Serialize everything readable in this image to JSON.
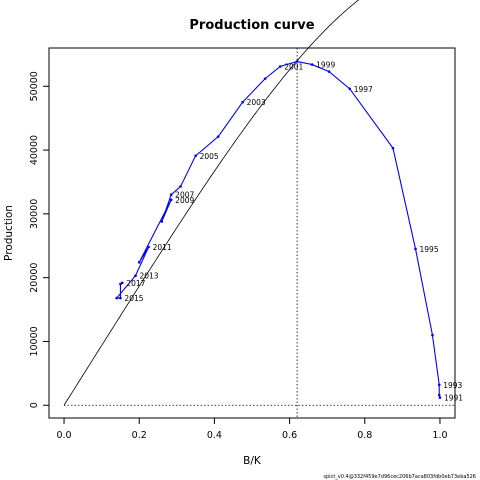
{
  "chart_data": {
    "type": "line",
    "title": "Production curve",
    "xlabel": "B/K",
    "ylabel": "Production",
    "xlim": [
      -0.04,
      1.04
    ],
    "ylim": [
      -2000,
      56000
    ],
    "x_ticks": [
      "0.0",
      "0.2",
      "0.4",
      "0.6",
      "0.8",
      "1.0"
    ],
    "y_ticks": [
      "0",
      "10000",
      "20000",
      "30000",
      "40000",
      "50000"
    ],
    "grid": false,
    "theoretical_curve": {
      "shape": "production curve",
      "max_production": 54000,
      "bmsy_over_k": 0.62
    },
    "bmsy_k_vertical_line": 0.62,
    "zero_line": 0,
    "observed_series": {
      "color": "#0000ff",
      "points": [
        {
          "year": "1991",
          "x": 1.0,
          "y": 1200,
          "label": "1991"
        },
        {
          "year": "1992",
          "x": 0.998,
          "y": 1600,
          "label": ""
        },
        {
          "year": "1993",
          "x": 0.998,
          "y": 3200,
          "label": "1993"
        },
        {
          "year": "1994",
          "x": 0.98,
          "y": 11000,
          "label": ""
        },
        {
          "year": "1995",
          "x": 0.935,
          "y": 24500,
          "label": "1995"
        },
        {
          "year": "1996",
          "x": 0.875,
          "y": 40300,
          "label": ""
        },
        {
          "year": "1997",
          "x": 0.76,
          "y": 49600,
          "label": "1997"
        },
        {
          "year": "1998",
          "x": 0.705,
          "y": 52300,
          "label": ""
        },
        {
          "year": "1999",
          "x": 0.66,
          "y": 53400,
          "label": "1999"
        },
        {
          "year": "2000",
          "x": 0.62,
          "y": 53900,
          "label": ""
        },
        {
          "year": "2001",
          "x": 0.575,
          "y": 53100,
          "label": "2001"
        },
        {
          "year": "2002",
          "x": 0.535,
          "y": 51200,
          "label": ""
        },
        {
          "year": "2003",
          "x": 0.475,
          "y": 47500,
          "label": "2003"
        },
        {
          "year": "2004",
          "x": 0.41,
          "y": 42100,
          "label": ""
        },
        {
          "year": "2005",
          "x": 0.35,
          "y": 39100,
          "label": "2005"
        },
        {
          "year": "2006",
          "x": 0.31,
          "y": 34300,
          "label": ""
        },
        {
          "year": "2007",
          "x": 0.285,
          "y": 33000,
          "label": "2007"
        },
        {
          "year": "2008",
          "x": 0.26,
          "y": 28800,
          "label": ""
        },
        {
          "year": "2009",
          "x": 0.285,
          "y": 32200,
          "label": "2009"
        },
        {
          "year": "2010",
          "x": 0.2,
          "y": 22400,
          "label": ""
        },
        {
          "year": "2011",
          "x": 0.225,
          "y": 24800,
          "label": "2011"
        },
        {
          "year": "2012",
          "x": 0.19,
          "y": 20300,
          "label": ""
        },
        {
          "year": "2013",
          "x": 0.19,
          "y": 20300,
          "label": "2013"
        },
        {
          "year": "2014",
          "x": 0.14,
          "y": 16800,
          "label": ""
        },
        {
          "year": "2015",
          "x": 0.15,
          "y": 16800,
          "label": "2015"
        },
        {
          "year": "2016",
          "x": 0.15,
          "y": 19000,
          "label": ""
        },
        {
          "year": "2017",
          "x": 0.155,
          "y": 19200,
          "label": "2017"
        }
      ]
    },
    "footnote": "spict_v0.4@332f459e7d96cec206b7aca803fdb0eb73eba526"
  }
}
